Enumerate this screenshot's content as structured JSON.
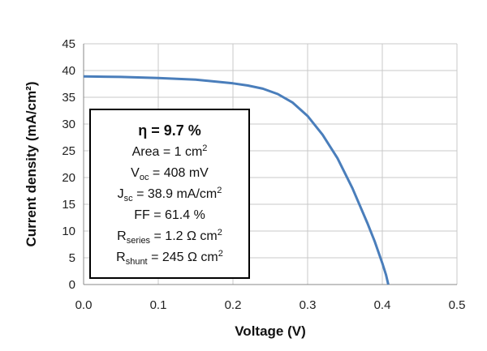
{
  "chart_data": {
    "type": "line",
    "xlabel": "Voltage (V)",
    "ylabel": "Current density (mA/cm²)",
    "xlim": [
      0,
      0.5
    ],
    "ylim": [
      0,
      45
    ],
    "x_ticks": [
      "0.0",
      "0.1",
      "0.2",
      "0.3",
      "0.4",
      "0.5"
    ],
    "y_ticks": [
      "0",
      "5",
      "10",
      "15",
      "20",
      "25",
      "30",
      "35",
      "40",
      "45"
    ],
    "grid": true,
    "series": [
      {
        "color": "#4a7ebb",
        "x": [
          0.0,
          0.05,
          0.1,
          0.15,
          0.2,
          0.22,
          0.24,
          0.26,
          0.28,
          0.3,
          0.32,
          0.34,
          0.36,
          0.38,
          0.39,
          0.4,
          0.405,
          0.408
        ],
        "y": [
          38.9,
          38.8,
          38.6,
          38.3,
          37.6,
          37.2,
          36.6,
          35.6,
          34.0,
          31.5,
          28.0,
          23.6,
          18.0,
          11.5,
          8.0,
          4.0,
          1.8,
          0.0
        ]
      }
    ]
  },
  "info_box": {
    "efficiency": {
      "symbol": "η",
      "text": " = 9.7 %"
    },
    "area": {
      "text": "Area = 1 cm",
      "sup": "2"
    },
    "voc": {
      "base": "V",
      "sub": "oc",
      "text": " = 408 mV"
    },
    "jsc": {
      "base": "J",
      "sub": "sc",
      "text": " = 38.9 mA/cm",
      "sup": "2"
    },
    "ff": {
      "text": "FF = 61.4 %"
    },
    "rseries": {
      "base": "R",
      "sub": "series",
      "text": " =  1.2 Ω cm",
      "sup": "2"
    },
    "rshunt": {
      "base": "R",
      "sub": "shunt",
      "text": " = 245 Ω cm",
      "sup": "2"
    }
  }
}
